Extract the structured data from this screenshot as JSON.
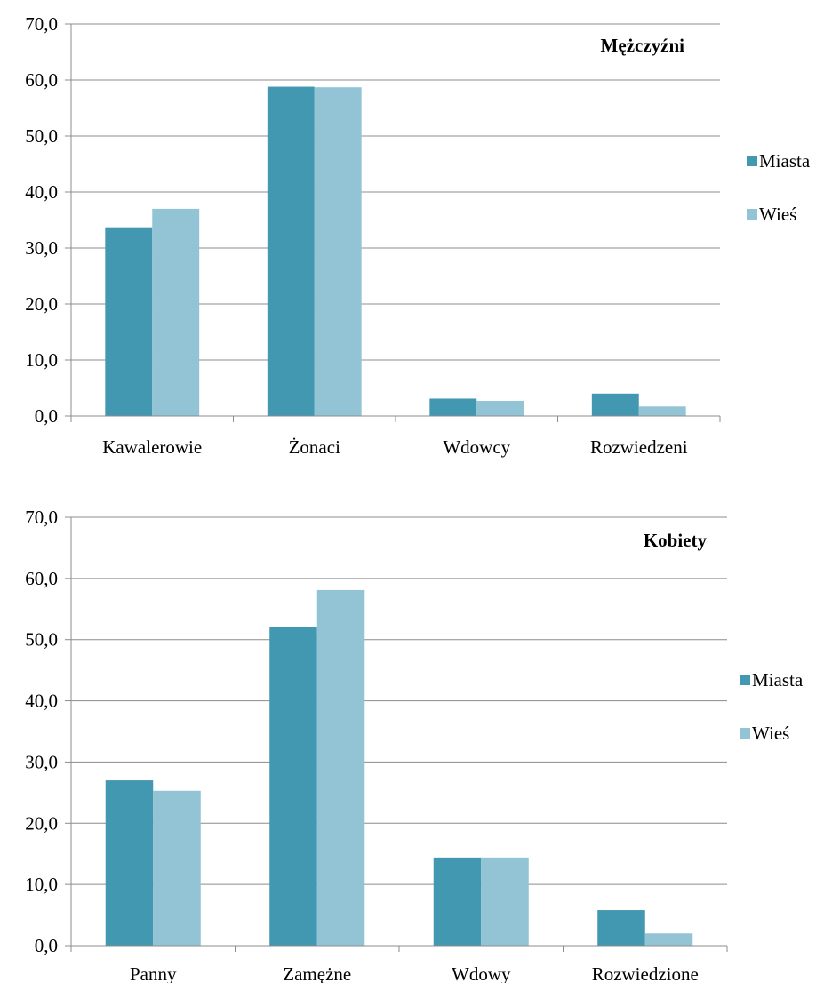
{
  "chart_data": [
    {
      "type": "bar",
      "title": "Mężczyźni",
      "categories": [
        "Kawalerowie",
        "Żonaci",
        "Wdowcy",
        "Rozwiedzeni"
      ],
      "series": [
        {
          "name": "Miasta",
          "color": "#4198b0",
          "values": [
            33.7,
            58.8,
            3.1,
            4.0
          ]
        },
        {
          "name": "Wieś",
          "color": "#93c4d5",
          "values": [
            37.0,
            58.7,
            2.7,
            1.7
          ]
        }
      ],
      "ylim": [
        0,
        70
      ],
      "yticks": [
        "0,0",
        "10,0",
        "20,0",
        "30,0",
        "40,0",
        "50,0",
        "60,0",
        "70,0"
      ],
      "grid": true,
      "legend": "right"
    },
    {
      "type": "bar",
      "title": "Kobiety",
      "categories": [
        "Panny",
        "Zamężne",
        "Wdowy",
        "Rozwiedzione"
      ],
      "series": [
        {
          "name": "Miasta",
          "color": "#4198b0",
          "values": [
            27.0,
            52.1,
            14.4,
            5.8
          ]
        },
        {
          "name": "Wieś",
          "color": "#93c4d5",
          "values": [
            25.3,
            58.1,
            14.4,
            2.0
          ]
        }
      ],
      "ylim": [
        0,
        70
      ],
      "yticks": [
        "0,0",
        "10,0",
        "20,0",
        "30,0",
        "40,0",
        "50,0",
        "60,0",
        "70,0"
      ],
      "grid": true,
      "legend": "right"
    }
  ]
}
